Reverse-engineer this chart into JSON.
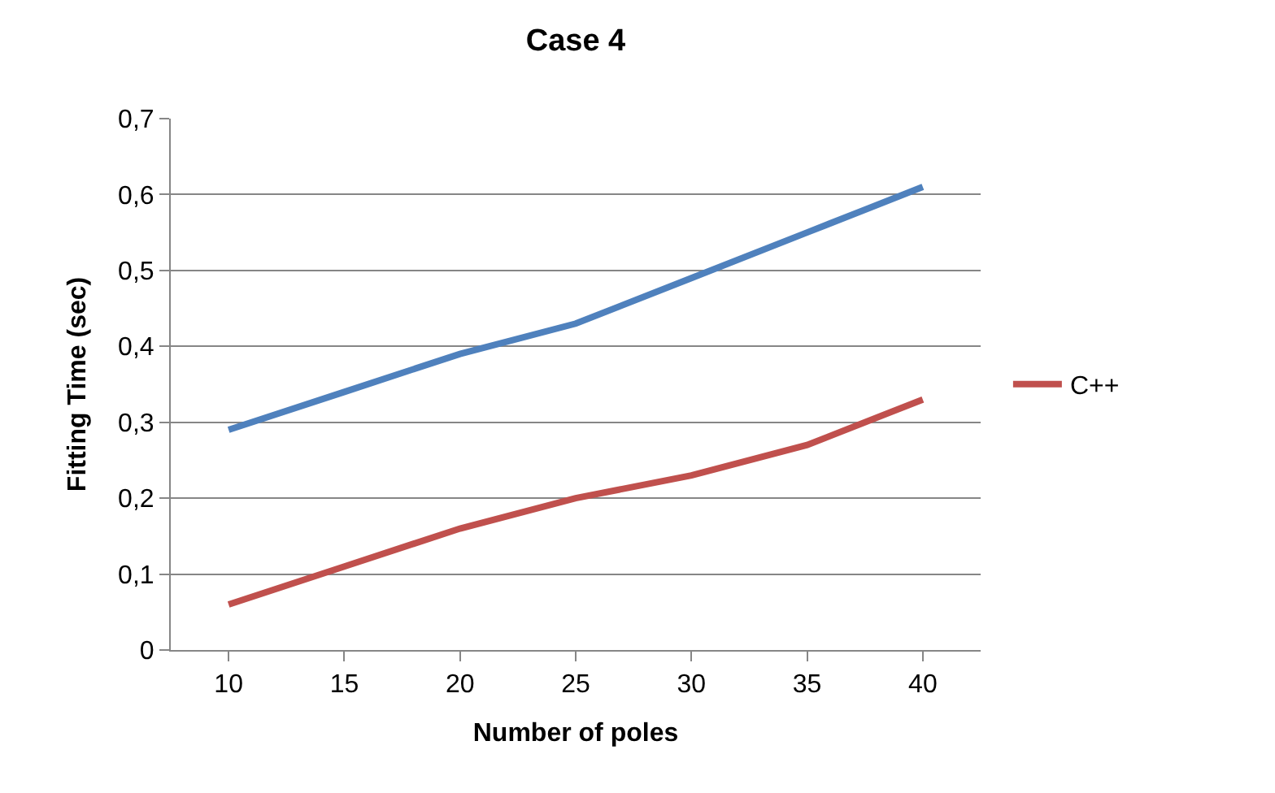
{
  "chart_data": {
    "type": "line",
    "title": "Case 4",
    "xlabel": "Number of poles",
    "ylabel": "Fitting Time (sec)",
    "categories": [
      "10",
      "15",
      "20",
      "25",
      "30",
      "35",
      "40"
    ],
    "series": [
      {
        "color": "#4f81bd",
        "values": [
          0.29,
          0.34,
          0.39,
          0.43,
          0.49,
          0.55,
          0.61
        ]
      },
      {
        "name": "C++",
        "color": "#c0504d",
        "values": [
          0.06,
          0.11,
          0.16,
          0.2,
          0.23,
          0.27,
          0.33
        ]
      }
    ],
    "ylim": [
      0,
      0.7
    ],
    "yticks": [
      0,
      {
        "value": 0.1,
        "label": "0,1"
      },
      {
        "value": 0.2,
        "label": "0,2"
      },
      {
        "value": 0.3,
        "label": "0,3"
      },
      {
        "value": 0.4,
        "label": "0,4"
      },
      {
        "value": 0.5,
        "label": "0,5"
      },
      {
        "value": 0.6,
        "label": "0,6"
      },
      {
        "value": 0.7,
        "label": "0,7"
      }
    ],
    "grid": "y",
    "legend": "right",
    "marker": "none",
    "line_style": "solid"
  }
}
